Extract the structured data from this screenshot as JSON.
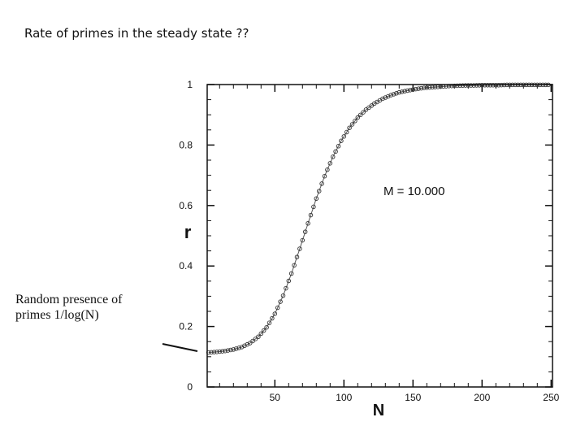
{
  "slide": {
    "title": "Rate of primes in the steady state ??"
  },
  "annotation": {
    "line1": "Random presence of",
    "line2": "primes 1/log(N)"
  },
  "chart_data": {
    "type": "scatter",
    "xlabel": "N",
    "ylabel": "r",
    "xlim": [
      1,
      251
    ],
    "ylim": [
      0,
      1
    ],
    "xticks": [
      50,
      100,
      150,
      200,
      250
    ],
    "yticks": [
      0,
      0.2,
      0.4,
      0.6,
      0.8,
      1
    ],
    "ytick_labels": [
      "0",
      "0.2",
      "0.4",
      "0.6",
      "0.8",
      "1"
    ],
    "annotation": "M = 10.000",
    "grid": false,
    "marker": "open-circle",
    "series": [
      {
        "x": [
          2,
          8,
          14,
          20,
          26,
          32,
          38,
          44,
          50,
          56,
          62,
          68,
          74,
          80,
          86,
          92,
          98,
          104,
          110,
          116,
          122,
          128,
          134,
          140,
          146,
          152,
          158,
          164,
          170,
          176,
          182,
          188,
          194,
          200,
          206,
          212,
          218,
          224,
          230,
          236,
          242,
          248
        ],
        "y": [
          0.114,
          0.116,
          0.119,
          0.124,
          0.132,
          0.145,
          0.166,
          0.197,
          0.242,
          0.302,
          0.375,
          0.457,
          0.541,
          0.623,
          0.697,
          0.761,
          0.814,
          0.857,
          0.891,
          0.917,
          0.937,
          0.953,
          0.965,
          0.974,
          0.98,
          0.985,
          0.989,
          0.991,
          0.993,
          0.995,
          0.996,
          0.997,
          0.997,
          0.998,
          0.998,
          0.998,
          0.999,
          0.999,
          0.999,
          0.999,
          0.999,
          0.999
        ]
      }
    ]
  }
}
